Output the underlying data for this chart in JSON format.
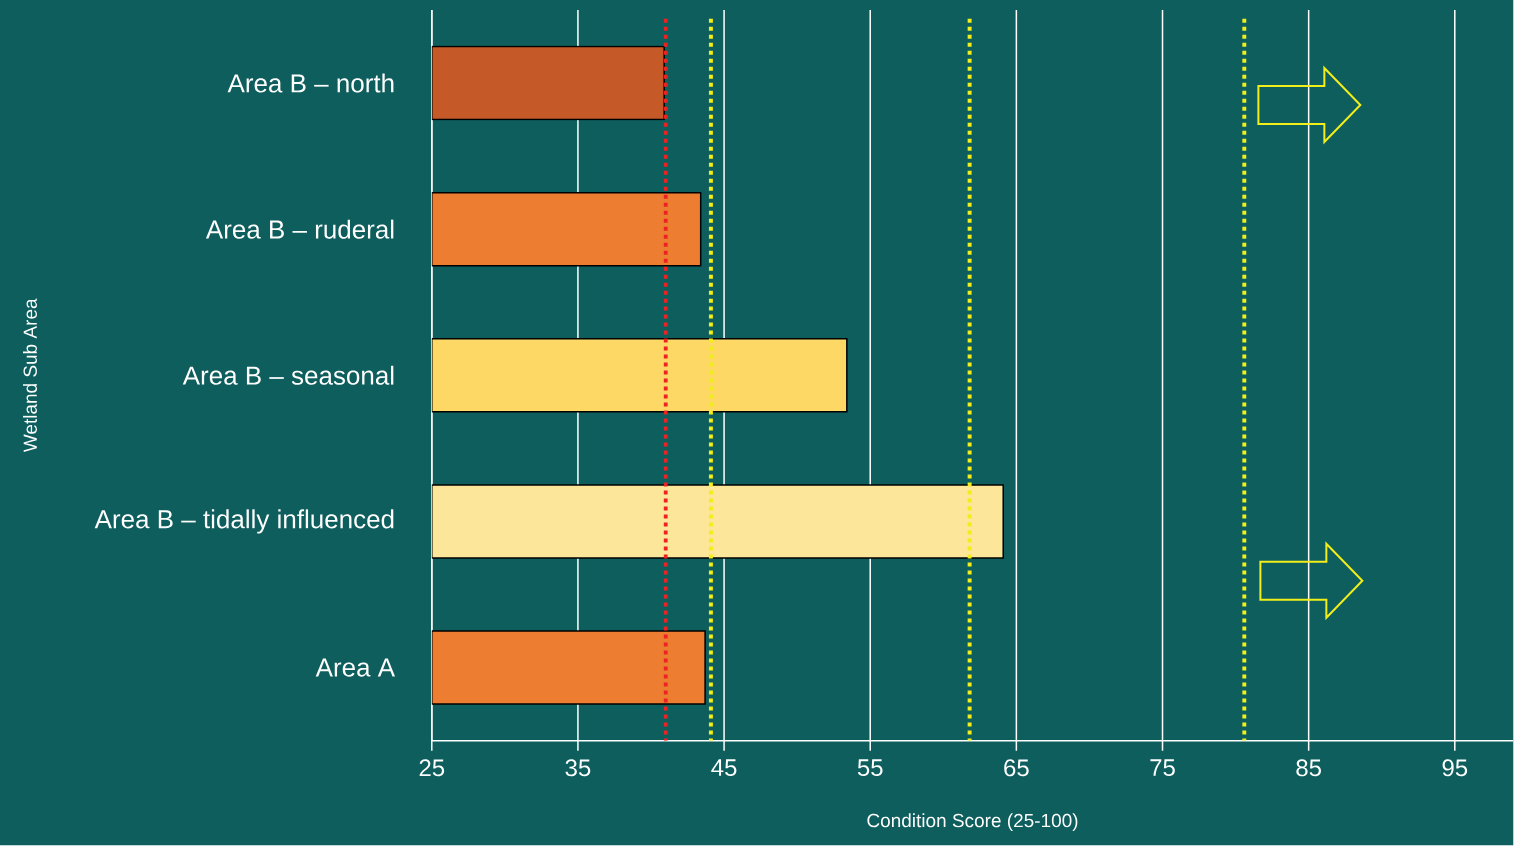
{
  "chart_data": {
    "type": "bar",
    "orientation": "horizontal",
    "ylabel": "Wetland Sub Area",
    "xlabel": "Condition Score (25-100)",
    "categories": [
      "Area B – north",
      "Area B – ruderal",
      "Area B – seasonal",
      "Area B – tidally influenced",
      "Area A"
    ],
    "values": [
      40.9,
      43.4,
      53.4,
      64.1,
      43.7
    ],
    "colors": [
      "#c55a28",
      "#ed7d31",
      "#fdd865",
      "#fce699",
      "#ed7d31"
    ],
    "xlim": [
      25,
      99
    ],
    "xticks": [
      25,
      35,
      45,
      55,
      65,
      75,
      85,
      95
    ],
    "grid": "x",
    "ref_lines": [
      {
        "axis": "x",
        "value": 41.0,
        "color": "#ee2222",
        "line_style": "dotted"
      },
      {
        "axis": "x",
        "value": 44.1,
        "color": "#f2ee1a",
        "line_style": "dotted"
      },
      {
        "axis": "x",
        "value": 61.8,
        "color": "#f2ee1a",
        "line_style": "dotted"
      },
      {
        "axis": "x",
        "value": 80.6,
        "color": "#f2ee1a",
        "line_style": "dotted"
      }
    ]
  }
}
